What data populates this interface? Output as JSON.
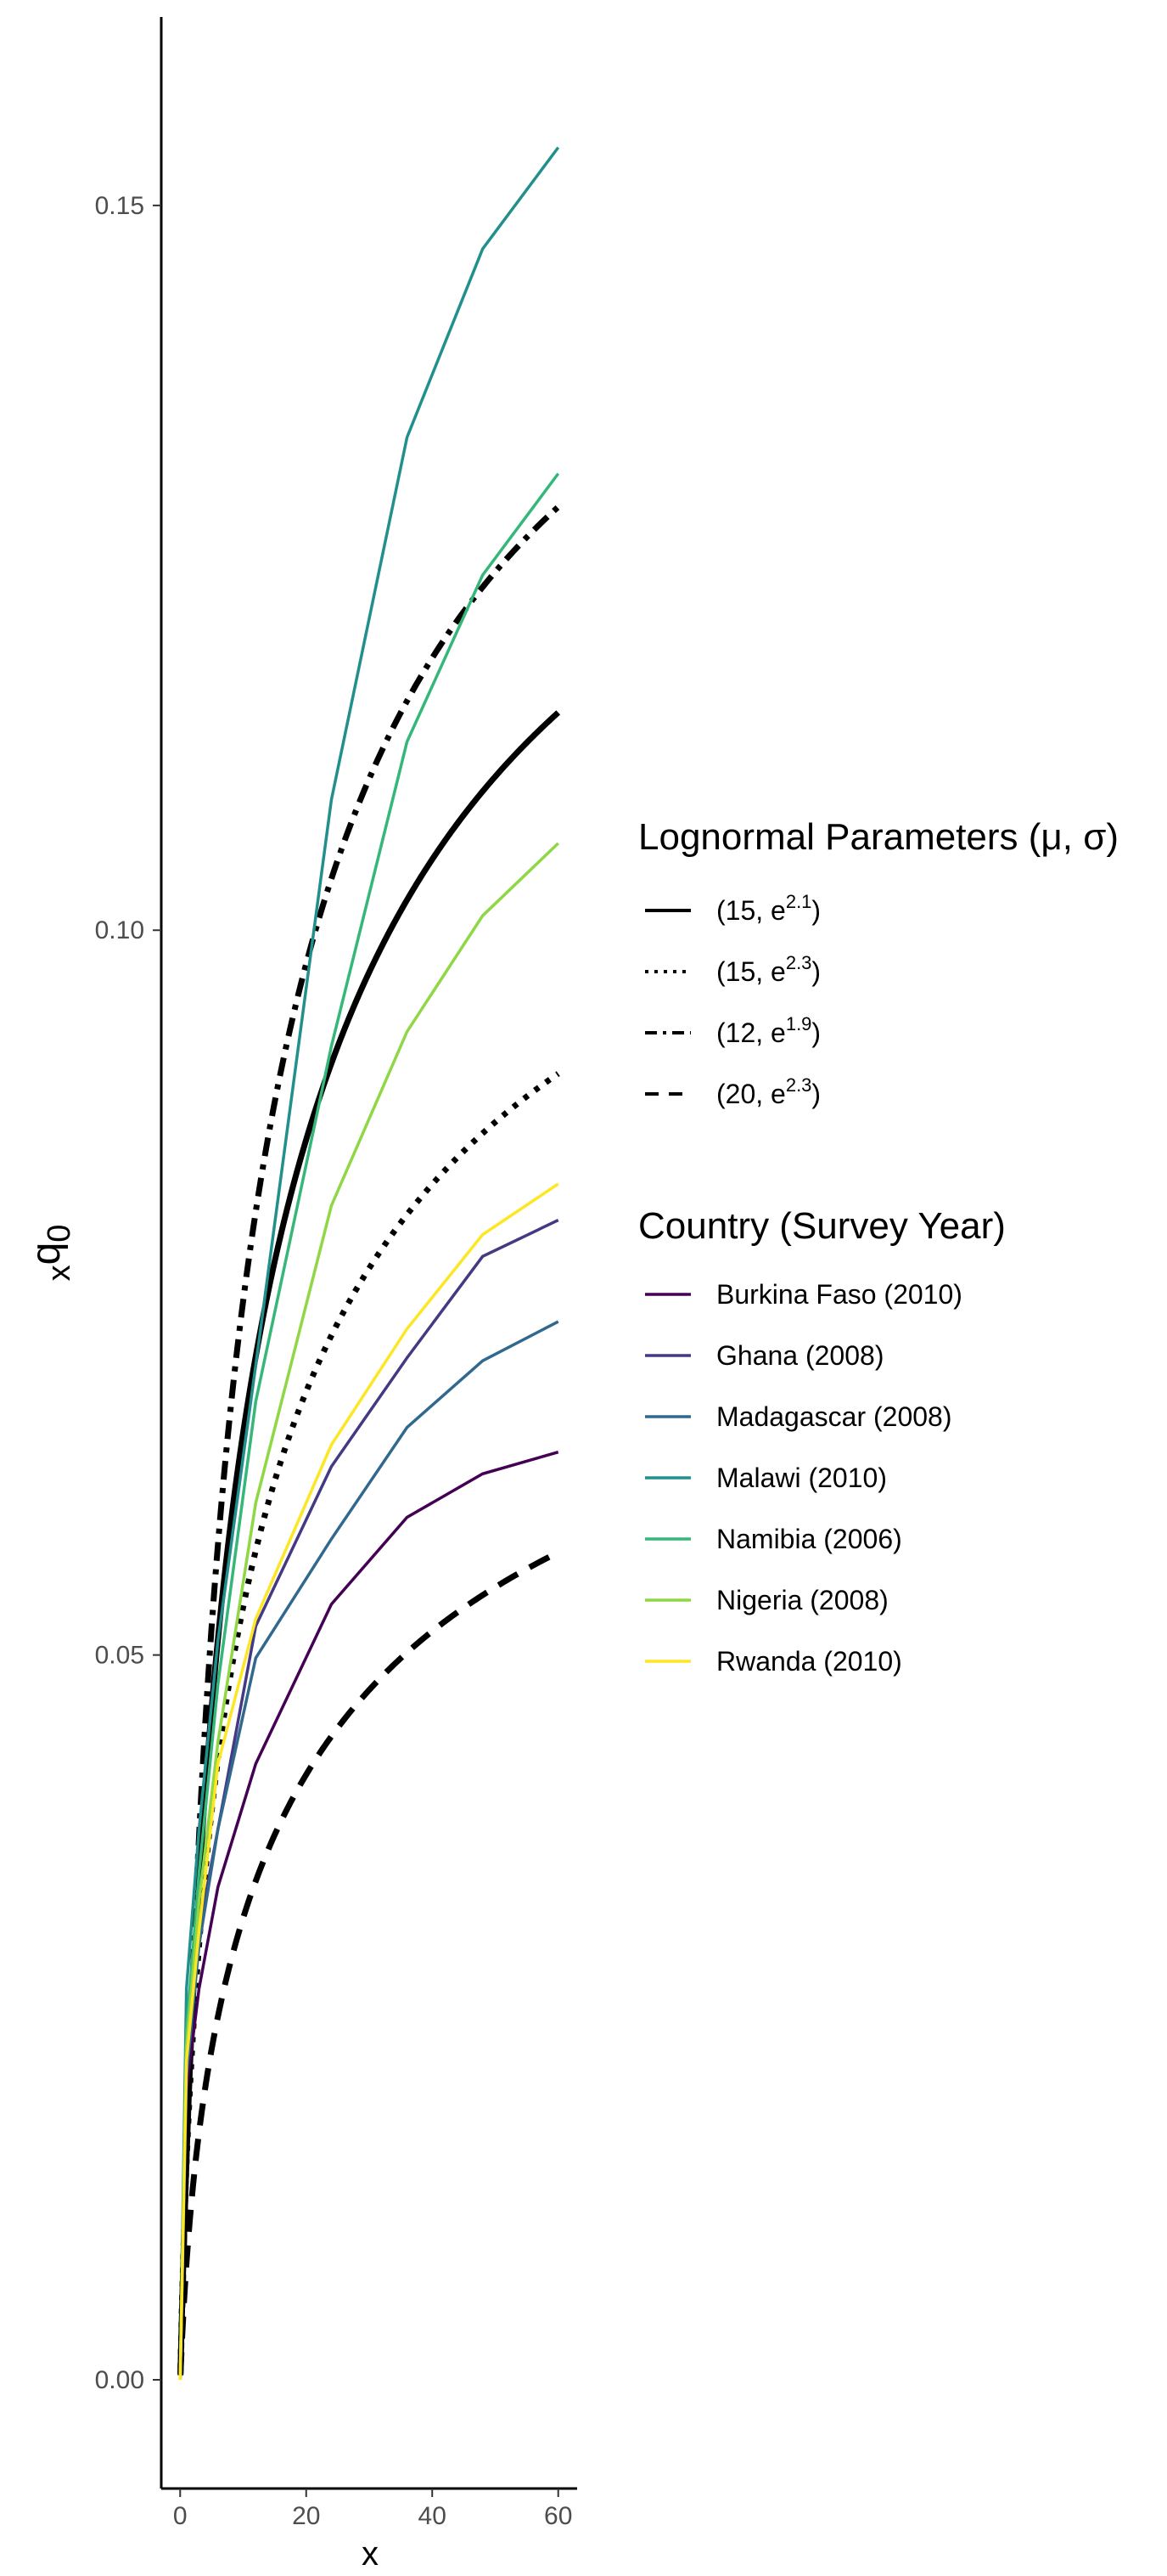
{
  "chart_data": {
    "type": "line",
    "title": "",
    "xlabel": "x",
    "ylabel_main": "q",
    "ylabel_pre": "x",
    "ylabel_sub": "0",
    "xlim": [
      -3,
      63
    ],
    "ylim": [
      -0.0075,
      0.163
    ],
    "x_ticks": [
      0,
      20,
      40,
      60
    ],
    "x_tick_labels": [
      "0",
      "20",
      "40",
      "60"
    ],
    "y_ticks": [
      0.0,
      0.05,
      0.1,
      0.15
    ],
    "y_tick_labels": [
      "0.00",
      "0.05",
      "0.10",
      "0.15"
    ],
    "grid": false,
    "legend_position": "right",
    "x": [
      0,
      1,
      3,
      6,
      12,
      24,
      36,
      48,
      60
    ],
    "lognormal_legend": {
      "title": "Lognormal Parameters (μ, σ)",
      "entries": [
        {
          "pre": "(15, e",
          "sup": "2.1",
          "post": ")",
          "dash": "solid"
        },
        {
          "pre": "(15, e",
          "sup": "2.3",
          "post": ")",
          "dash": "dotted"
        },
        {
          "pre": "(12, e",
          "sup": "1.9",
          "post": ")",
          "dash": "dotdash"
        },
        {
          "pre": "(20, e",
          "sup": "2.3",
          "post": ")",
          "dash": "dashed"
        }
      ]
    },
    "lognormal_series": [
      {
        "dash": "solid",
        "color": "#000000",
        "mu": 15,
        "sigma": 8.166,
        "scale": 0.1543
      },
      {
        "dash": "dotted",
        "color": "#000000",
        "mu": 15,
        "sigma": 9.974,
        "scale": 0.124
      },
      {
        "dash": "dotdash",
        "color": "#000000",
        "mu": 12,
        "sigma": 6.686,
        "scale": 0.1612
      },
      {
        "dash": "dashed",
        "color": "#000000",
        "mu": 20,
        "sigma": 9.974,
        "scale": 0.0835
      }
    ],
    "country_legend": {
      "title": "Country (Survey Year)"
    },
    "series": [
      {
        "name": "Burkina Faso (2010)",
        "color": "#440154",
        "values": [
          0.0,
          0.02,
          0.027,
          0.034,
          0.0425,
          0.0535,
          0.0595,
          0.0625,
          0.064
        ]
      },
      {
        "name": "Ghana (2008)",
        "color": "#443983",
        "values": [
          0.0,
          0.022,
          0.031,
          0.038,
          0.052,
          0.063,
          0.0705,
          0.0775,
          0.08
        ]
      },
      {
        "name": "Madagascar (2008)",
        "color": "#31688E",
        "values": [
          0.0,
          0.021,
          0.03,
          0.038,
          0.0498,
          0.058,
          0.0657,
          0.0703,
          0.073
        ]
      },
      {
        "name": "Malawi (2010)",
        "color": "#21908C",
        "values": [
          0.0,
          0.027,
          0.038,
          0.051,
          0.07,
          0.109,
          0.134,
          0.147,
          0.154
        ]
      },
      {
        "name": "Namibia (2006)",
        "color": "#35B779",
        "values": [
          0.0,
          0.024,
          0.035,
          0.048,
          0.0675,
          0.092,
          0.113,
          0.1245,
          0.1315
        ]
      },
      {
        "name": "Nigeria (2008)",
        "color": "#8FD744",
        "values": [
          0.0,
          0.023,
          0.033,
          0.044,
          0.0605,
          0.081,
          0.093,
          0.101,
          0.106
        ]
      },
      {
        "name": "Rwanda (2010)",
        "color": "#FDE725",
        "values": [
          0.0,
          0.022,
          0.031,
          0.0425,
          0.0525,
          0.0645,
          0.0725,
          0.079,
          0.0825
        ]
      }
    ]
  }
}
